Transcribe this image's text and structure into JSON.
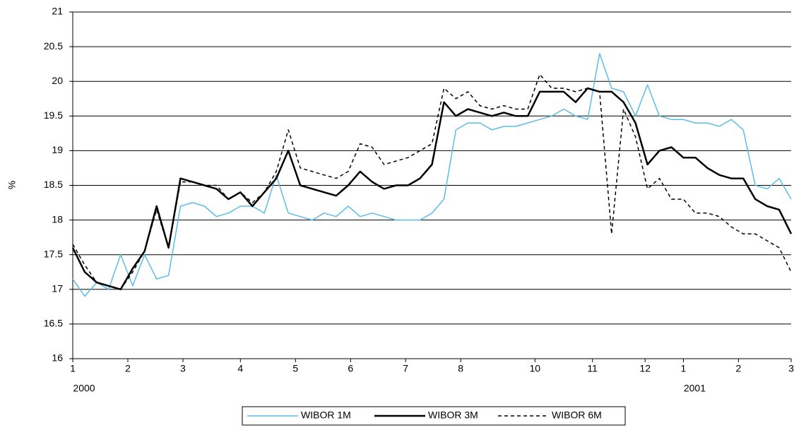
{
  "chart_data": {
    "type": "line",
    "y_axis_label": "%",
    "x": [
      0,
      5,
      10,
      15,
      20,
      25,
      30,
      35,
      40,
      45,
      50,
      55,
      60,
      65,
      70,
      75,
      80,
      85,
      90,
      95,
      100,
      105,
      110,
      115,
      120,
      125,
      130,
      135,
      140,
      145,
      150,
      155,
      160,
      165,
      170,
      175,
      180,
      185,
      190,
      195,
      200,
      205,
      210,
      215,
      220,
      225,
      230,
      235,
      240,
      245,
      250,
      255,
      260,
      265,
      270,
      275,
      280,
      285,
      290,
      295,
      300
    ],
    "xlim": [
      0,
      300
    ],
    "xticks": [
      {
        "value": 0,
        "label": "1"
      },
      {
        "value": 23,
        "label": "2"
      },
      {
        "value": 46,
        "label": "3"
      },
      {
        "value": 70,
        "label": "4"
      },
      {
        "value": 93,
        "label": "5"
      },
      {
        "value": 116,
        "label": "6"
      },
      {
        "value": 139,
        "label": "7"
      },
      {
        "value": 162,
        "label": "8"
      },
      {
        "value": 193,
        "label": "10"
      },
      {
        "value": 217,
        "label": "11"
      },
      {
        "value": 239,
        "label": "12"
      },
      {
        "value": 255,
        "label": "1"
      },
      {
        "value": 278,
        "label": "2"
      },
      {
        "value": 300,
        "label": "3"
      }
    ],
    "x_group_labels": [
      {
        "value": 0,
        "label": "2000"
      },
      {
        "value": 255,
        "label": "2001"
      }
    ],
    "ylim": [
      16,
      21
    ],
    "yticks": [
      16,
      16.5,
      17,
      17.5,
      18,
      18.5,
      19,
      19.5,
      20,
      20.5,
      21
    ],
    "grid": true,
    "legend": "bottom",
    "series": [
      {
        "name": "WIBOR 1M",
        "color": "#5bbde6",
        "dash": "solid",
        "width": 1.5,
        "values": [
          17.15,
          16.9,
          17.1,
          17.0,
          17.5,
          17.05,
          17.5,
          17.15,
          17.2,
          18.2,
          18.25,
          18.2,
          18.05,
          18.1,
          18.2,
          18.2,
          18.1,
          18.65,
          18.1,
          18.05,
          18.0,
          18.1,
          18.05,
          18.2,
          18.05,
          18.1,
          18.05,
          18.0,
          18.0,
          18.0,
          18.1,
          18.3,
          19.3,
          19.4,
          19.4,
          19.3,
          19.35,
          19.35,
          19.4,
          19.45,
          19.5,
          19.6,
          19.5,
          19.45,
          20.4,
          19.9,
          19.85,
          19.5,
          19.95,
          19.5,
          19.45,
          19.45,
          19.4,
          19.4,
          19.35,
          19.45,
          19.3,
          18.5,
          18.45,
          18.6,
          18.3
        ]
      },
      {
        "name": "WIBOR 3M",
        "color": "#000000",
        "dash": "solid",
        "width": 2.5,
        "values": [
          17.6,
          17.25,
          17.1,
          17.05,
          17.0,
          17.3,
          17.55,
          18.2,
          17.6,
          18.6,
          18.55,
          18.5,
          18.45,
          18.3,
          18.4,
          18.2,
          18.4,
          18.6,
          19.0,
          18.5,
          18.45,
          18.4,
          18.35,
          18.5,
          18.7,
          18.55,
          18.45,
          18.5,
          18.5,
          18.6,
          18.8,
          19.7,
          19.5,
          19.6,
          19.55,
          19.5,
          19.55,
          19.5,
          19.5,
          19.85,
          19.85,
          19.85,
          19.7,
          19.9,
          19.85,
          19.85,
          19.7,
          19.4,
          18.8,
          19.0,
          19.05,
          18.9,
          18.9,
          18.75,
          18.65,
          18.6,
          18.6,
          18.3,
          18.2,
          18.15,
          17.8
        ]
      },
      {
        "name": "WIBOR 6M",
        "color": "#000000",
        "dash": "dashed",
        "width": 1.5,
        "values": [
          17.65,
          17.35,
          17.1,
          17.05,
          17.0,
          17.25,
          17.55,
          18.15,
          17.6,
          18.55,
          18.55,
          18.5,
          18.5,
          18.3,
          18.4,
          18.25,
          18.4,
          18.7,
          19.3,
          18.75,
          18.7,
          18.65,
          18.6,
          18.7,
          19.1,
          19.05,
          18.8,
          18.85,
          18.9,
          19.0,
          19.1,
          19.9,
          19.75,
          19.85,
          19.65,
          19.6,
          19.65,
          19.6,
          19.6,
          20.1,
          19.9,
          19.9,
          19.85,
          19.9,
          19.85,
          17.8,
          19.6,
          19.2,
          18.45,
          18.6,
          18.3,
          18.3,
          18.1,
          18.1,
          18.05,
          17.9,
          17.8,
          17.8,
          17.7,
          17.6,
          17.25
        ]
      }
    ]
  }
}
